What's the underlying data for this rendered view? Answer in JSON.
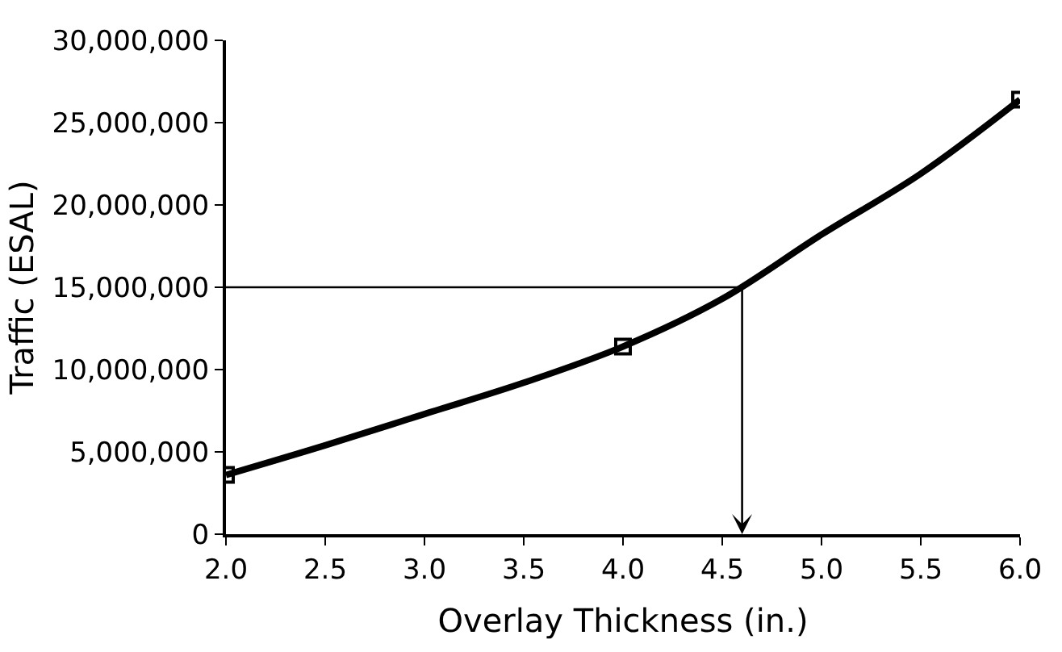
{
  "chart_data": {
    "type": "line",
    "xlabel": "Overlay Thickness (in.)",
    "ylabel": "Traffic (ESAL)",
    "xlim": [
      2.0,
      6.0
    ],
    "xticks": [
      {
        "value": 2.0,
        "label": "2.0"
      },
      {
        "value": 2.5,
        "label": "2.5"
      },
      {
        "value": 3.0,
        "label": "3.0"
      },
      {
        "value": 3.5,
        "label": "3.5"
      },
      {
        "value": 4.0,
        "label": "4.0"
      },
      {
        "value": 4.5,
        "label": "4.5"
      },
      {
        "value": 5.0,
        "label": "5.0"
      },
      {
        "value": 5.5,
        "label": "5.5"
      },
      {
        "value": 6.0,
        "label": "6.0"
      }
    ],
    "ylim": [
      0,
      30000000
    ],
    "yticks": [
      {
        "value": 0,
        "label": "0"
      },
      {
        "value": 5000000,
        "label": "5,000,000"
      },
      {
        "value": 10000000,
        "label": "10,000,000"
      },
      {
        "value": 15000000,
        "label": "15,000,000"
      },
      {
        "value": 20000000,
        "label": "20,000,000"
      },
      {
        "value": 25000000,
        "label": "25,000,000"
      },
      {
        "value": 30000000,
        "label": "30,000,000"
      }
    ],
    "series": [
      {
        "color": "#000000",
        "marker": "none",
        "x": [
          2.0,
          2.5,
          3.0,
          3.5,
          4.0,
          4.5,
          5.0,
          5.5,
          6.0
        ],
        "values": [
          3600000,
          5400000,
          7300000,
          9200000,
          11400000,
          14300000,
          18200000,
          21900000,
          26400000
        ]
      },
      {
        "type": "scatter",
        "color": "#000000",
        "marker": "square",
        "x": [
          2.0,
          4.0,
          6.0
        ],
        "values": [
          3600000,
          11400000,
          26400000
        ]
      }
    ],
    "ref_lines": [
      {
        "axis": "y",
        "value": 15000000,
        "color": "#000000"
      },
      {
        "axis": "x",
        "value": 4.6,
        "color": "#000000"
      }
    ]
  }
}
